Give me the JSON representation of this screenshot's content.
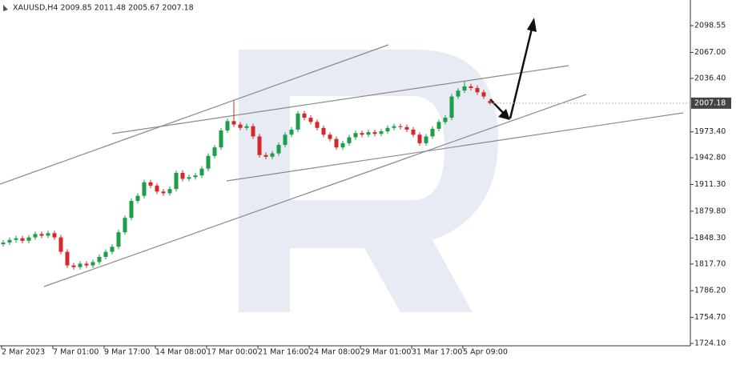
{
  "chart_data": {
    "type": "candlestick",
    "title": "XAUUSD,H4  2009.85 2011.48 2005.67 2007.18",
    "categories": [
      "2 Mar 2023",
      null,
      null,
      null,
      null,
      null,
      null,
      null,
      "7 Mar 01:00",
      null,
      null,
      null,
      null,
      null,
      null,
      null,
      "9 Mar 17:00",
      null,
      null,
      null,
      null,
      null,
      null,
      null,
      "14 Mar 08:00",
      null,
      null,
      null,
      null,
      null,
      null,
      null,
      "17 Mar 00:00",
      null,
      null,
      null,
      null,
      null,
      null,
      null,
      "21 Mar 16:00",
      null,
      null,
      null,
      null,
      null,
      null,
      null,
      "24 Mar 08:00",
      null,
      null,
      null,
      null,
      null,
      null,
      null,
      "29 Mar 01:00",
      null,
      null,
      null,
      null,
      null,
      null,
      null,
      "31 Mar 17:00",
      null,
      null,
      null,
      null,
      null,
      null,
      null,
      "5 Apr 09:00",
      null,
      null,
      null,
      null
    ],
    "opens": [
      1841,
      1843,
      1846,
      1848,
      1845,
      1849,
      1853,
      1851,
      1854,
      1849,
      1832,
      1816,
      1814,
      1818,
      1816,
      1820,
      1826,
      1832,
      1838,
      1855,
      1872,
      1892,
      1898,
      1914,
      1910,
      1903,
      1901,
      1906,
      1925,
      1918,
      1920,
      1922,
      1930,
      1945,
      1955,
      1975,
      1986,
      1982,
      1978,
      1980,
      1968,
      1946,
      1944,
      1948,
      1958,
      1970,
      1976,
      1995,
      1990,
      1985,
      1978,
      1970,
      1965,
      1955,
      1960,
      1967,
      1972,
      1970,
      1973,
      1971,
      1974,
      1978,
      1980,
      1979,
      1976,
      1970,
      1960,
      1968,
      1977,
      1985,
      1990,
      2015,
      2022,
      2027,
      2025,
      2020,
      2009.85
    ],
    "highs": [
      1846,
      1849,
      1851,
      1851,
      1852,
      1856,
      1856,
      1857,
      1857,
      1852,
      1835,
      1819,
      1821,
      1821,
      1823,
      1829,
      1835,
      1841,
      1858,
      1875,
      1895,
      1901,
      1917,
      1917,
      1913,
      1906,
      1909,
      1928,
      1928,
      1923,
      1925,
      1933,
      1948,
      1958,
      1978,
      1989,
      2010,
      1985,
      1983,
      1983,
      1971,
      1949,
      1951,
      1961,
      1973,
      1979,
      1998,
      1998,
      1993,
      1988,
      1981,
      1973,
      1968,
      1963,
      1970,
      1975,
      1975,
      1976,
      1976,
      1977,
      1981,
      1983,
      1983,
      1982,
      1979,
      1973,
      1971,
      1980,
      1988,
      1993,
      2018,
      2025,
      2033,
      2030,
      2028,
      2023,
      2011.48
    ],
    "lows": [
      1838,
      1840,
      1843,
      1842,
      1842,
      1846,
      1848,
      1848,
      1846,
      1829,
      1813,
      1811,
      1811,
      1813,
      1813,
      1817,
      1823,
      1829,
      1835,
      1852,
      1869,
      1889,
      1895,
      1907,
      1900,
      1898,
      1898,
      1903,
      1915,
      1915,
      1917,
      1919,
      1927,
      1942,
      1952,
      1972,
      1979,
      1975,
      1975,
      1965,
      1943,
      1941,
      1941,
      1945,
      1955,
      1967,
      1973,
      1987,
      1982,
      1975,
      1967,
      1962,
      1952,
      1952,
      1957,
      1964,
      1967,
      1967,
      1968,
      1968,
      1971,
      1975,
      1976,
      1973,
      1967,
      1957,
      1957,
      1965,
      1974,
      1982,
      1987,
      2012,
      2019,
      2022,
      2017,
      2012,
      2005.67
    ],
    "closes": [
      1843,
      1846,
      1848,
      1845,
      1849,
      1853,
      1851,
      1854,
      1849,
      1832,
      1816,
      1814,
      1818,
      1816,
      1820,
      1826,
      1832,
      1838,
      1855,
      1872,
      1892,
      1898,
      1914,
      1910,
      1903,
      1901,
      1906,
      1925,
      1918,
      1920,
      1922,
      1930,
      1945,
      1955,
      1975,
      1986,
      1982,
      1978,
      1980,
      1968,
      1946,
      1944,
      1948,
      1958,
      1970,
      1976,
      1995,
      1990,
      1985,
      1978,
      1970,
      1965,
      1955,
      1960,
      1967,
      1972,
      1970,
      1973,
      1971,
      1974,
      1978,
      1980,
      1979,
      1976,
      1970,
      1960,
      1968,
      1977,
      1985,
      1990,
      2015,
      2022,
      2027,
      2025,
      2020,
      2015,
      2007.18
    ],
    "up_color": "#1e9e4a",
    "down_color": "#d62828",
    "ylim": [
      1721.3,
      2128.7
    ],
    "yticks": [
      {
        "value": 2098.55,
        "label": "2098.55"
      },
      {
        "value": 2067,
        "label": "2067.00"
      },
      {
        "value": 2036.4,
        "label": "2036.40"
      },
      {
        "value": 1973.4,
        "label": "1973.40"
      },
      {
        "value": 1942.8,
        "label": "1942.80"
      },
      {
        "value": 1911.3,
        "label": "1911.30"
      },
      {
        "value": 1879.8,
        "label": "1879.80"
      },
      {
        "value": 1848.3,
        "label": "1848.30"
      },
      {
        "value": 1817.7,
        "label": "1817.70"
      },
      {
        "value": 1786.2,
        "label": "1786.20"
      },
      {
        "value": 1754.7,
        "label": "1754.70"
      },
      {
        "value": 1724.1,
        "label": "1724.10"
      }
    ],
    "last_price": 2007.18
  }
}
